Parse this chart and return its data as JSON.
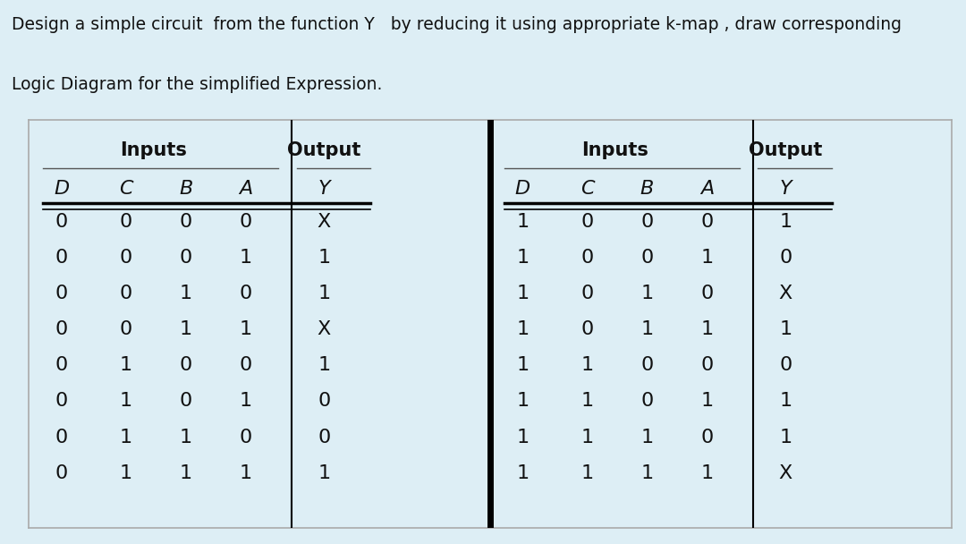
{
  "title_line1": "Design a simple circuit  from the function Y   by reducing it using appropriate k-map , draw corresponding",
  "title_line2": "Logic Diagram for the simplified Expression.",
  "bg_color": "#ddeef5",
  "table_bg": "#f0f0f0",
  "header_inputs": "Inputs",
  "header_output": "Output",
  "col_headers": [
    "D",
    "C",
    "B",
    "A",
    "Y"
  ],
  "left_table": [
    [
      "0",
      "0",
      "0",
      "0",
      "X"
    ],
    [
      "0",
      "0",
      "0",
      "1",
      "1"
    ],
    [
      "0",
      "0",
      "1",
      "0",
      "1"
    ],
    [
      "0",
      "0",
      "1",
      "1",
      "X"
    ],
    [
      "0",
      "1",
      "0",
      "0",
      "1"
    ],
    [
      "0",
      "1",
      "0",
      "1",
      "0"
    ],
    [
      "0",
      "1",
      "1",
      "0",
      "0"
    ],
    [
      "0",
      "1",
      "1",
      "1",
      "1"
    ]
  ],
  "right_table": [
    [
      "1",
      "0",
      "0",
      "0",
      "1"
    ],
    [
      "1",
      "0",
      "0",
      "1",
      "0"
    ],
    [
      "1",
      "0",
      "1",
      "0",
      "X"
    ],
    [
      "1",
      "0",
      "1",
      "1",
      "1"
    ],
    [
      "1",
      "1",
      "0",
      "0",
      "0"
    ],
    [
      "1",
      "1",
      "0",
      "1",
      "1"
    ],
    [
      "1",
      "1",
      "1",
      "0",
      "1"
    ],
    [
      "1",
      "1",
      "1",
      "1",
      "X"
    ]
  ],
  "text_color": "#111111",
  "title_fontsize": 13.5,
  "header_fontsize": 15,
  "col_header_fontsize": 16,
  "data_fontsize": 16
}
